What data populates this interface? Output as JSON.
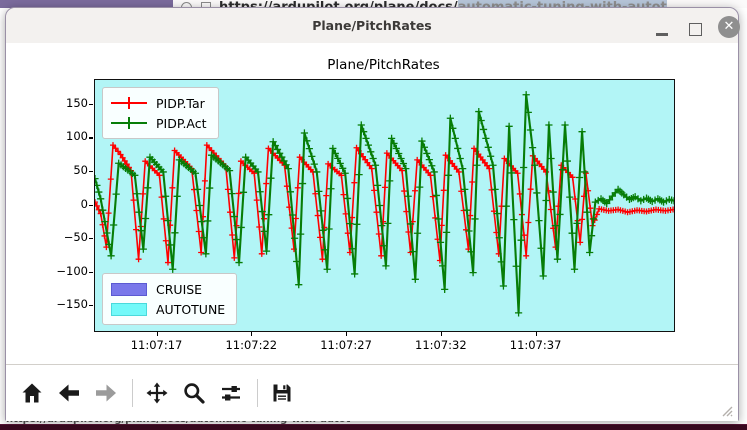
{
  "browser_top": {
    "toolbar_color": "#7b6b9d",
    "url_prefix": "https://ardupilot.org/plane/docs/",
    "url_selected": "automatic-tuning-with-autot",
    "selection_bg": "#b7c6da"
  },
  "window": {
    "title": "Plane/PitchRates",
    "controls": {
      "minimize": "",
      "maximize": "",
      "close": "✕"
    }
  },
  "statusbar": {
    "text": "https://ardupilot.org/plane/docs/automatic-tuning-with-autot",
    "bar_color": "#3a0920"
  },
  "toolbar": {
    "buttons": [
      "home",
      "back",
      "forward",
      "pan",
      "zoom",
      "configure-subplots",
      "save"
    ]
  },
  "chart_data": {
    "type": "line",
    "title": "Plane/PitchRates",
    "plot_bg": "#b2f5f6",
    "xlabel": "",
    "ylabel": "",
    "ylim": [
      -187,
      187
    ],
    "x_range_seconds": [
      13.7,
      44.25
    ],
    "grid": false,
    "legend_position": "upper left",
    "x_ticks": [
      {
        "t": 17,
        "label": "11:07:17"
      },
      {
        "t": 22,
        "label": "11:07:22"
      },
      {
        "t": 27,
        "label": "11:07:27"
      },
      {
        "t": 32,
        "label": "11:07:32"
      },
      {
        "t": 37,
        "label": "11:07:37"
      }
    ],
    "y_ticks": [
      {
        "v": 150,
        "label": "150"
      },
      {
        "v": 100,
        "label": "100"
      },
      {
        "v": 50,
        "label": "50"
      },
      {
        "v": 0,
        "label": "0"
      },
      {
        "v": -50,
        "label": "−50"
      },
      {
        "v": -100,
        "label": "−100"
      },
      {
        "v": -150,
        "label": "−150"
      }
    ],
    "modes": [
      {
        "label": "CRUISE",
        "color": "#7878ea",
        "border": "#5a5ad2"
      },
      {
        "label": "AUTOTUNE",
        "color": "#72f9f9",
        "border": "#4ad9db"
      }
    ],
    "series": [
      {
        "name": "PIDP.Tar",
        "color": "#ff0000",
        "marker": "+",
        "line_width": 1.6,
        "marker_size": 3,
        "points": [
          [
            13.7,
            5
          ],
          [
            14.0,
            -12
          ],
          [
            14.3,
            -62
          ],
          [
            14.65,
            90
          ],
          [
            15.05,
            76
          ],
          [
            15.6,
            52
          ],
          [
            16.0,
            -80
          ],
          [
            16.35,
            66
          ],
          [
            17.1,
            45
          ],
          [
            17.55,
            -85
          ],
          [
            17.9,
            82
          ],
          [
            18.8,
            55
          ],
          [
            19.3,
            -70
          ],
          [
            19.6,
            90
          ],
          [
            20.6,
            58
          ],
          [
            21.05,
            -78
          ],
          [
            21.4,
            66
          ],
          [
            22.1,
            48
          ],
          [
            22.5,
            -72
          ],
          [
            22.85,
            85
          ],
          [
            23.7,
            60
          ],
          [
            24.2,
            -65
          ],
          [
            24.5,
            72
          ],
          [
            25.2,
            50
          ],
          [
            25.7,
            -80
          ],
          [
            26.0,
            62
          ],
          [
            26.7,
            45
          ],
          [
            27.15,
            -70
          ],
          [
            27.5,
            86
          ],
          [
            28.3,
            55
          ],
          [
            28.8,
            -75
          ],
          [
            29.1,
            78
          ],
          [
            29.9,
            52
          ],
          [
            30.35,
            -70
          ],
          [
            30.7,
            68
          ],
          [
            31.4,
            45
          ],
          [
            31.9,
            -82
          ],
          [
            32.2,
            75
          ],
          [
            32.9,
            50
          ],
          [
            33.4,
            -65
          ],
          [
            33.7,
            85
          ],
          [
            34.5,
            55
          ],
          [
            35.0,
            -72
          ],
          [
            35.3,
            70
          ],
          [
            36.0,
            48
          ],
          [
            36.45,
            -75
          ],
          [
            36.8,
            74
          ],
          [
            37.5,
            50
          ],
          [
            38.0,
            -62
          ],
          [
            38.3,
            60
          ],
          [
            38.9,
            42
          ],
          [
            39.3,
            -55
          ],
          [
            39.6,
            48
          ],
          [
            39.95,
            -30
          ],
          [
            40.3,
            -5
          ],
          [
            40.8,
            -8
          ],
          [
            41.3,
            -6
          ],
          [
            41.8,
            -10
          ],
          [
            42.3,
            -7
          ],
          [
            42.8,
            -9
          ],
          [
            43.3,
            -6
          ],
          [
            43.8,
            -8
          ],
          [
            44.2,
            -6
          ]
        ]
      },
      {
        "name": "PIDP.Act",
        "color": "#077d07",
        "marker": "+",
        "line_width": 2.1,
        "marker_size": 3.6,
        "points": [
          [
            13.7,
            40
          ],
          [
            14.0,
            10
          ],
          [
            14.55,
            -75
          ],
          [
            14.95,
            63
          ],
          [
            15.8,
            45
          ],
          [
            16.25,
            -65
          ],
          [
            16.6,
            72
          ],
          [
            17.3,
            50
          ],
          [
            17.8,
            -95
          ],
          [
            18.15,
            68
          ],
          [
            19.0,
            48
          ],
          [
            19.55,
            -72
          ],
          [
            19.85,
            75
          ],
          [
            20.8,
            52
          ],
          [
            21.3,
            -85
          ],
          [
            21.65,
            72
          ],
          [
            22.3,
            50
          ],
          [
            22.75,
            -68
          ],
          [
            23.1,
            95
          ],
          [
            23.9,
            55
          ],
          [
            24.45,
            -118
          ],
          [
            24.75,
            108
          ],
          [
            25.4,
            50
          ],
          [
            25.95,
            -95
          ],
          [
            26.25,
            85
          ],
          [
            26.9,
            48
          ],
          [
            27.4,
            -102
          ],
          [
            27.75,
            120
          ],
          [
            28.5,
            60
          ],
          [
            29.05,
            -90
          ],
          [
            29.35,
            100
          ],
          [
            30.1,
            55
          ],
          [
            30.6,
            -110
          ],
          [
            30.95,
            96
          ],
          [
            31.6,
            50
          ],
          [
            32.15,
            -125
          ],
          [
            32.45,
            130
          ],
          [
            33.1,
            55
          ],
          [
            33.65,
            -100
          ],
          [
            33.95,
            140
          ],
          [
            34.7,
            60
          ],
          [
            35.25,
            -120
          ],
          [
            35.55,
            118
          ],
          [
            36.05,
            -160
          ],
          [
            36.45,
            165
          ],
          [
            36.9,
            60
          ],
          [
            37.35,
            -105
          ],
          [
            37.65,
            120
          ],
          [
            38.1,
            -80
          ],
          [
            38.5,
            120
          ],
          [
            39.0,
            -95
          ],
          [
            39.4,
            110
          ],
          [
            39.8,
            -70
          ],
          [
            40.1,
            5
          ],
          [
            40.4,
            10
          ],
          [
            40.7,
            3
          ],
          [
            41.0,
            14
          ],
          [
            41.3,
            24
          ],
          [
            41.6,
            16
          ],
          [
            41.9,
            9
          ],
          [
            42.2,
            13
          ],
          [
            42.5,
            7
          ],
          [
            42.8,
            11
          ],
          [
            43.1,
            6
          ],
          [
            43.4,
            10
          ],
          [
            43.7,
            5
          ],
          [
            44.0,
            9
          ],
          [
            44.25,
            7
          ]
        ]
      }
    ]
  }
}
